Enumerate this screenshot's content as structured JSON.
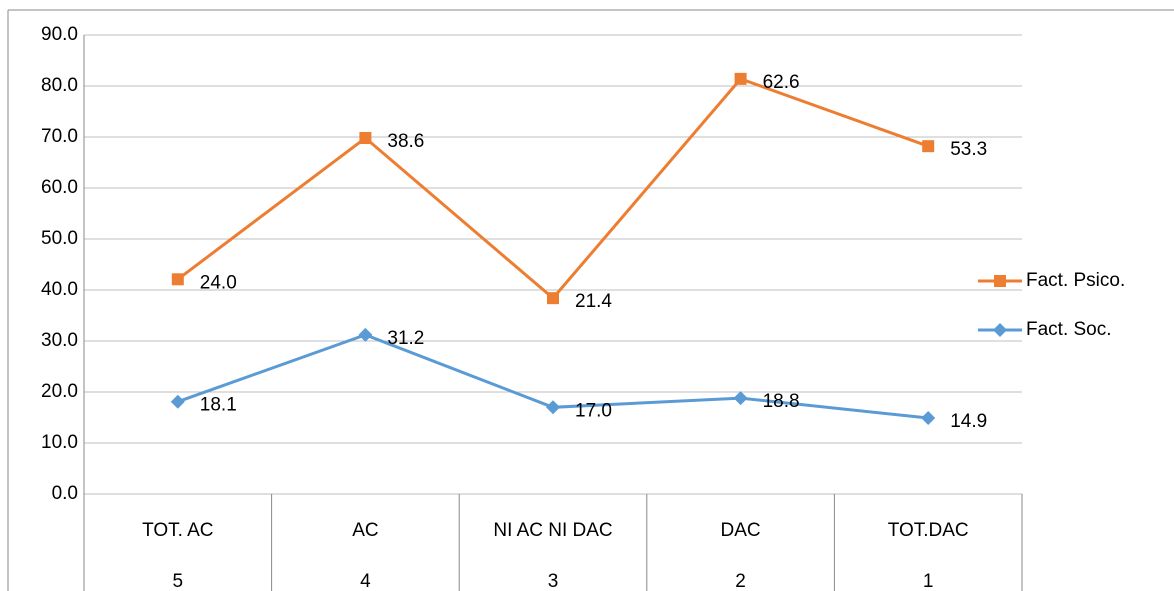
{
  "chart_data": {
    "type": "line",
    "stacked": true,
    "categories": [
      "TOT. AC",
      "AC",
      "NI AC NI DAC",
      "DAC",
      "TOT.DAC"
    ],
    "category_codes": [
      "5",
      "4",
      "3",
      "2",
      "1"
    ],
    "series": [
      {
        "name": "Fact. Soc.",
        "color": "#5b9bd5",
        "marker": "diamond",
        "values": [
          18.1,
          31.2,
          17.0,
          18.8,
          14.9
        ],
        "value_labels": [
          "18.1",
          "31.2",
          "17.0",
          "18.8",
          "14.9"
        ]
      },
      {
        "name": "Fact. Psico.",
        "color": "#ed7d31",
        "marker": "square",
        "values": [
          24.0,
          38.6,
          21.4,
          62.6,
          53.3
        ],
        "value_labels": [
          "24.0",
          "38.6",
          "21.4",
          "62.6",
          "53.3"
        ]
      }
    ],
    "ylim": [
      0,
      90
    ],
    "yticks": [
      {
        "value": 0,
        "label": "0.0"
      },
      {
        "value": 10,
        "label": "10.0"
      },
      {
        "value": 20,
        "label": "20.0"
      },
      {
        "value": 30,
        "label": "30.0"
      },
      {
        "value": 40,
        "label": "40.0"
      },
      {
        "value": 50,
        "label": "50.0"
      },
      {
        "value": 60,
        "label": "60.0"
      },
      {
        "value": 70,
        "label": "70.0"
      },
      {
        "value": 80,
        "label": "80.0"
      },
      {
        "value": 90,
        "label": "90.0"
      }
    ],
    "grid": true,
    "legend": "right"
  }
}
